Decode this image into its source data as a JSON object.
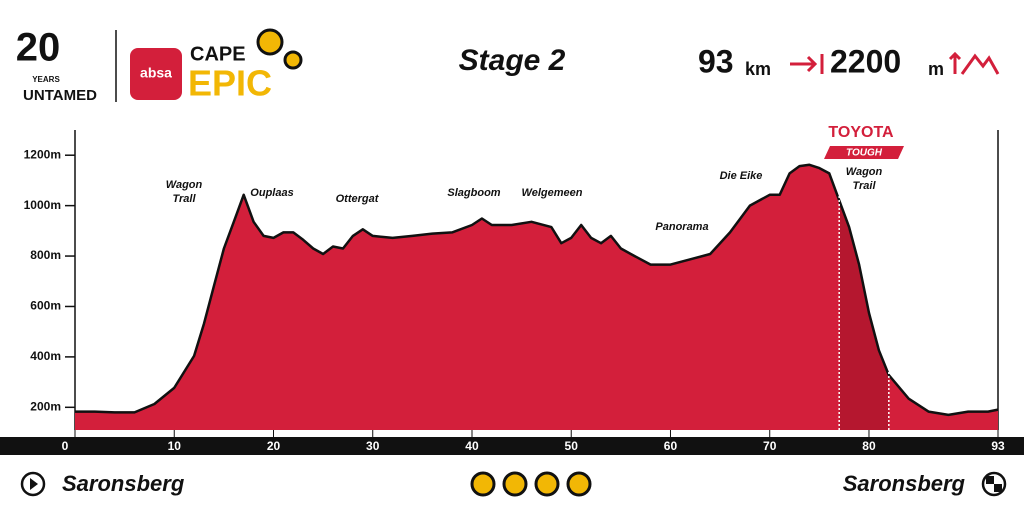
{
  "chart_data": {
    "type": "area",
    "title": "Stage 2",
    "distance": "93",
    "distance_unit": "km",
    "climbing": "2200",
    "climbing_unit": "m",
    "logo": {
      "years": "20",
      "years_word": "YEARS",
      "tagline": "UNTAMED",
      "sponsor": "absa",
      "brand_top": "CAPE",
      "brand_main": "EPIC"
    },
    "start": "Saronsberg",
    "finish": "Saronsberg",
    "color": "#d31f3b",
    "x": [
      0,
      2,
      4,
      6,
      8,
      10,
      12,
      13,
      14,
      15,
      16,
      17,
      18,
      19,
      20,
      21,
      22,
      23,
      24,
      25,
      26,
      27,
      28,
      29,
      30,
      32,
      34,
      36,
      38,
      40,
      41,
      42,
      44,
      46,
      48,
      49,
      50,
      51,
      52,
      53,
      54,
      55,
      56,
      58,
      60,
      62,
      64,
      66,
      68,
      70,
      71,
      72,
      73,
      74,
      75,
      76,
      77,
      78,
      79,
      80,
      81,
      82,
      84,
      86,
      88,
      90,
      92,
      93
    ],
    "values": [
      183,
      183,
      180,
      180,
      213,
      277,
      404,
      532,
      681,
      830,
      936,
      1043,
      936,
      880,
      872,
      894,
      894,
      864,
      830,
      808,
      838,
      830,
      880,
      906,
      880,
      872,
      880,
      889,
      894,
      923,
      949,
      923,
      923,
      936,
      915,
      851,
      872,
      923,
      872,
      851,
      880,
      830,
      808,
      766,
      766,
      787,
      808,
      894,
      1000,
      1043,
      1043,
      1128,
      1157,
      1162,
      1149,
      1128,
      1021,
      915,
      766,
      574,
      426,
      328,
      234,
      183,
      170,
      183,
      183,
      191
    ],
    "xlim": [
      0,
      93
    ],
    "xticks": [
      0,
      10,
      20,
      30,
      40,
      50,
      60,
      70,
      80,
      93
    ],
    "ylim": [
      110,
      1300
    ],
    "yticks": [
      {
        "value": 200,
        "label": "200m"
      },
      {
        "value": 400,
        "label": "400m"
      },
      {
        "value": 600,
        "label": "600m"
      },
      {
        "value": 800,
        "label": "800m"
      },
      {
        "value": 1000,
        "label": "1000m"
      },
      {
        "value": 1200,
        "label": "1200m"
      }
    ],
    "annotations": [
      {
        "lines": [
          "Wagon",
          "Trall"
        ]
      },
      {
        "lines": [
          "Ouplaas"
        ]
      },
      {
        "lines": [
          "Ottergat"
        ]
      },
      {
        "lines": [
          "Slagboom"
        ]
      },
      {
        "lines": [
          "Welgemeen"
        ]
      },
      {
        "lines": [
          "Panorama"
        ]
      },
      {
        "lines": [
          "Die Eike"
        ]
      }
    ],
    "highlight": {
      "start": 77,
      "end": 82,
      "color": "#b5172f",
      "sponsor": "TOYOTA",
      "badge": "TOUGH",
      "lines": [
        "Wagon",
        "Trail"
      ]
    }
  }
}
